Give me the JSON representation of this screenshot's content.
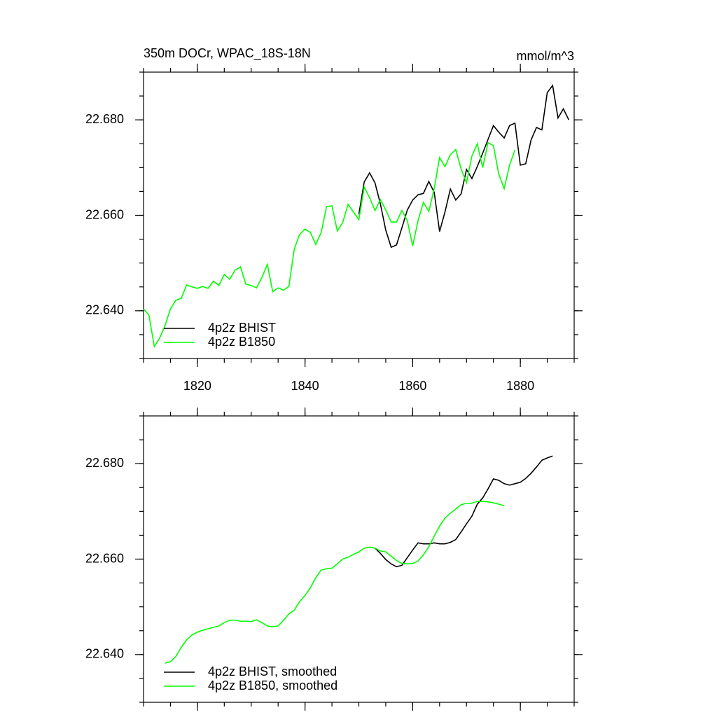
{
  "chart_data": [
    {
      "type": "line",
      "title": "350m DOCr, WPAC_18S-18N",
      "units": "mmol/m^3",
      "x": [
        1810,
        1811,
        1812,
        1813,
        1814,
        1815,
        1816,
        1817,
        1818,
        1819,
        1820,
        1821,
        1822,
        1823,
        1824,
        1825,
        1826,
        1827,
        1828,
        1829,
        1830,
        1831,
        1832,
        1833,
        1834,
        1835,
        1836,
        1837,
        1838,
        1839,
        1840,
        1841,
        1842,
        1843,
        1844,
        1845,
        1846,
        1847,
        1848,
        1849,
        1850,
        1851,
        1852,
        1853,
        1854,
        1855,
        1856,
        1857,
        1858,
        1859,
        1860,
        1861,
        1862,
        1863,
        1864,
        1865,
        1866,
        1867,
        1868,
        1869,
        1870,
        1871,
        1872,
        1873,
        1874,
        1875,
        1876,
        1877,
        1878,
        1879,
        1880,
        1881,
        1882,
        1883,
        1884,
        1885,
        1886,
        1887,
        1888,
        1889
      ],
      "xlim": [
        1810,
        1890
      ],
      "xticks": [
        1820,
        1840,
        1860,
        1880
      ],
      "xtick_labels": true,
      "ylim": [
        22.63,
        22.69
      ],
      "yticks": [
        {
          "value": 22.64,
          "label": "22.640"
        },
        {
          "value": 22.66,
          "label": "22.660"
        },
        {
          "value": 22.68,
          "label": "22.680"
        }
      ],
      "legend": "lower left",
      "series": [
        {
          "name": "4p2z BHIST",
          "color": "#000000",
          "values": [
            null,
            null,
            null,
            null,
            null,
            null,
            null,
            null,
            null,
            null,
            null,
            null,
            null,
            null,
            null,
            null,
            null,
            null,
            null,
            null,
            null,
            null,
            null,
            null,
            null,
            null,
            null,
            null,
            null,
            null,
            null,
            null,
            null,
            null,
            null,
            null,
            null,
            null,
            null,
            null,
            22.6602,
            22.667,
            22.6689,
            22.6668,
            22.6624,
            22.6569,
            22.6533,
            22.6538,
            22.6574,
            22.6611,
            22.6632,
            22.6643,
            22.6646,
            22.6671,
            22.6648,
            22.6566,
            22.6607,
            22.6655,
            22.6632,
            22.6645,
            22.6696,
            22.6677,
            22.6702,
            22.673,
            22.6759,
            22.6788,
            22.6774,
            22.6762,
            22.6788,
            22.6793,
            22.6705,
            22.6708,
            22.6758,
            22.6784,
            22.6779,
            22.6857,
            22.6872,
            22.6804,
            22.6823,
            22.68
          ]
        },
        {
          "name": "4p2z B1850",
          "color": "#00ff00",
          "values": [
            22.6404,
            22.6391,
            22.6325,
            22.6343,
            22.6369,
            22.6404,
            22.6422,
            22.6426,
            22.6454,
            22.645,
            22.6447,
            22.6451,
            22.6447,
            22.6462,
            22.6453,
            22.6476,
            22.6466,
            22.6485,
            22.6492,
            22.6456,
            22.6453,
            22.6448,
            22.647,
            22.6497,
            22.644,
            22.6448,
            22.6443,
            22.6451,
            22.6529,
            22.656,
            22.6571,
            22.6564,
            22.6539,
            22.6564,
            22.6618,
            22.662,
            22.6567,
            22.6585,
            22.6623,
            22.6607,
            22.6591,
            22.6659,
            22.6637,
            22.661,
            22.6633,
            22.6611,
            22.6586,
            22.6586,
            22.661,
            22.6589,
            22.6536,
            22.6589,
            22.6627,
            22.6608,
            22.6656,
            22.6721,
            22.6702,
            22.6727,
            22.6738,
            22.6697,
            22.6668,
            22.6724,
            22.675,
            22.67,
            22.6752,
            22.6746,
            22.6686,
            22.6656,
            22.6705,
            22.6737,
            null,
            null,
            null,
            null,
            null,
            null,
            null,
            null,
            null,
            null
          ]
        }
      ]
    },
    {
      "type": "line",
      "x": [
        1814,
        1815,
        1816,
        1817,
        1818,
        1819,
        1820,
        1821,
        1822,
        1823,
        1824,
        1825,
        1826,
        1827,
        1828,
        1829,
        1830,
        1831,
        1832,
        1833,
        1834,
        1835,
        1836,
        1837,
        1838,
        1839,
        1840,
        1841,
        1842,
        1843,
        1844,
        1845,
        1846,
        1847,
        1848,
        1849,
        1850,
        1851,
        1852,
        1853,
        1854,
        1855,
        1856,
        1857,
        1858,
        1859,
        1860,
        1861,
        1862,
        1863,
        1864,
        1865,
        1866,
        1867,
        1868,
        1869,
        1870,
        1871,
        1872,
        1873,
        1874,
        1875,
        1876,
        1877,
        1878,
        1879,
        1880,
        1881,
        1882,
        1883,
        1884,
        1885,
        1886
      ],
      "xlim": [
        1810,
        1890
      ],
      "xticks": [
        1820,
        1840,
        1860,
        1880
      ],
      "xtick_labels": false,
      "ylim": [
        22.63,
        22.69
      ],
      "yticks": [
        {
          "value": 22.64,
          "label": "22.640"
        },
        {
          "value": 22.66,
          "label": "22.660"
        },
        {
          "value": 22.68,
          "label": "22.680"
        }
      ],
      "legend": "lower left",
      "series": [
        {
          "name": "4p2z BHIST, smoothed",
          "color": "#000000",
          "values": [
            null,
            null,
            null,
            null,
            null,
            null,
            null,
            null,
            null,
            null,
            null,
            null,
            null,
            null,
            null,
            null,
            null,
            null,
            null,
            null,
            null,
            null,
            null,
            null,
            null,
            null,
            null,
            null,
            null,
            null,
            null,
            null,
            null,
            null,
            null,
            null,
            null,
            null,
            null,
            22.6623,
            22.6612,
            22.6599,
            22.659,
            22.6584,
            22.6587,
            22.6603,
            22.6619,
            22.6634,
            22.6632,
            22.6632,
            22.6634,
            22.6632,
            22.6632,
            22.6635,
            22.6641,
            22.6657,
            22.6674,
            22.669,
            22.6715,
            22.6728,
            22.6747,
            22.6768,
            22.6765,
            22.6758,
            22.6755,
            22.6758,
            22.6761,
            22.6769,
            22.678,
            22.6793,
            22.6807,
            22.6812,
            22.6816
          ]
        },
        {
          "name": "4p2z B1850, smoothed",
          "color": "#00ff00",
          "values": [
            22.6382,
            22.6385,
            22.6396,
            22.6415,
            22.6431,
            22.6441,
            22.6447,
            22.6451,
            22.6454,
            22.6457,
            22.646,
            22.6467,
            22.6472,
            22.6472,
            22.647,
            22.647,
            22.6469,
            22.6473,
            22.6467,
            22.646,
            22.6458,
            22.646,
            22.6472,
            22.6485,
            22.6493,
            22.6511,
            22.6524,
            22.654,
            22.6561,
            22.6577,
            22.658,
            22.6581,
            22.659,
            22.66,
            22.6604,
            22.661,
            22.6615,
            22.6623,
            22.6625,
            22.6623,
            22.6617,
            22.6615,
            22.6606,
            22.6597,
            22.6591,
            22.659,
            22.6591,
            22.6596,
            22.6609,
            22.6626,
            22.6648,
            22.6669,
            22.6686,
            22.6696,
            22.6705,
            22.6714,
            22.6717,
            22.6717,
            22.6721,
            22.6721,
            22.672,
            22.6718,
            22.6715,
            22.6712,
            null,
            null,
            null,
            null,
            null,
            null,
            null,
            null,
            null
          ]
        }
      ]
    }
  ]
}
